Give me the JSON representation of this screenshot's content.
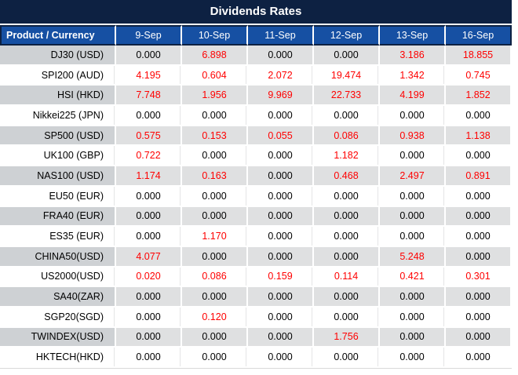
{
  "title": "Dividends Rates",
  "chart_data": {
    "type": "table",
    "title": "Dividends Rates",
    "product_header": "Product / Currency",
    "date_headers": [
      "9-Sep",
      "10-Sep",
      "11-Sep",
      "12-Sep",
      "13-Sep",
      "16-Sep"
    ],
    "rows": [
      {
        "product": "DJ30 (USD)",
        "values": [
          "0.000",
          "6.898",
          "0.000",
          "0.000",
          "3.186",
          "18.855"
        ],
        "red": [
          false,
          true,
          false,
          false,
          true,
          true
        ]
      },
      {
        "product": "SPI200 (AUD)",
        "values": [
          "4.195",
          "0.604",
          "2.072",
          "19.474",
          "1.342",
          "0.745"
        ],
        "red": [
          true,
          true,
          true,
          true,
          true,
          true
        ]
      },
      {
        "product": "HSI (HKD)",
        "values": [
          "7.748",
          "1.956",
          "9.969",
          "22.733",
          "4.199",
          "1.852"
        ],
        "red": [
          true,
          true,
          true,
          true,
          true,
          true
        ]
      },
      {
        "product": "Nikkei225 (JPN)",
        "values": [
          "0.000",
          "0.000",
          "0.000",
          "0.000",
          "0.000",
          "0.000"
        ],
        "red": [
          false,
          false,
          false,
          false,
          false,
          false
        ]
      },
      {
        "product": "SP500 (USD)",
        "values": [
          "0.575",
          "0.153",
          "0.055",
          "0.086",
          "0.938",
          "1.138"
        ],
        "red": [
          true,
          true,
          true,
          true,
          true,
          true
        ]
      },
      {
        "product": "UK100 (GBP)",
        "values": [
          "0.722",
          "0.000",
          "0.000",
          "1.182",
          "0.000",
          "0.000"
        ],
        "red": [
          true,
          false,
          false,
          true,
          false,
          false
        ]
      },
      {
        "product": "NAS100 (USD)",
        "values": [
          "1.174",
          "0.163",
          "0.000",
          "0.468",
          "2.497",
          "0.891"
        ],
        "red": [
          true,
          true,
          false,
          true,
          true,
          true
        ]
      },
      {
        "product": "EU50 (EUR)",
        "values": [
          "0.000",
          "0.000",
          "0.000",
          "0.000",
          "0.000",
          "0.000"
        ],
        "red": [
          false,
          false,
          false,
          false,
          false,
          false
        ]
      },
      {
        "product": "FRA40 (EUR)",
        "values": [
          "0.000",
          "0.000",
          "0.000",
          "0.000",
          "0.000",
          "0.000"
        ],
        "red": [
          false,
          false,
          false,
          false,
          false,
          false
        ]
      },
      {
        "product": "ES35 (EUR)",
        "values": [
          "0.000",
          "1.170",
          "0.000",
          "0.000",
          "0.000",
          "0.000"
        ],
        "red": [
          false,
          true,
          false,
          false,
          false,
          false
        ]
      },
      {
        "product": "CHINA50(USD)",
        "values": [
          "4.077",
          "0.000",
          "0.000",
          "0.000",
          "5.248",
          "0.000"
        ],
        "red": [
          true,
          false,
          false,
          false,
          true,
          false
        ]
      },
      {
        "product": "US2000(USD)",
        "values": [
          "0.020",
          "0.086",
          "0.159",
          "0.114",
          "0.421",
          "0.301"
        ],
        "red": [
          true,
          true,
          true,
          true,
          true,
          true
        ]
      },
      {
        "product": "SA40(ZAR)",
        "values": [
          "0.000",
          "0.000",
          "0.000",
          "0.000",
          "0.000",
          "0.000"
        ],
        "red": [
          false,
          false,
          false,
          false,
          false,
          false
        ]
      },
      {
        "product": "SGP20(SGD)",
        "values": [
          "0.000",
          "0.120",
          "0.000",
          "0.000",
          "0.000",
          "0.000"
        ],
        "red": [
          false,
          true,
          false,
          false,
          false,
          false
        ]
      },
      {
        "product": "TWINDEX(USD)",
        "values": [
          "0.000",
          "0.000",
          "0.000",
          "1.756",
          "0.000",
          "0.000"
        ],
        "red": [
          false,
          false,
          false,
          true,
          false,
          false
        ]
      },
      {
        "product": "HKTECH(HKD)",
        "values": [
          "0.000",
          "0.000",
          "0.000",
          "0.000",
          "0.000",
          "0.000"
        ],
        "red": [
          false,
          false,
          false,
          false,
          false,
          false
        ]
      }
    ]
  },
  "colors": {
    "title_bg": "#0d2142",
    "header_bg": "#1650a3",
    "header_border": "#0d2142",
    "stripe_product_bg": "#ced1d4",
    "stripe_value_bg": "#dfe0e1",
    "value_red": "#ff0000",
    "value_black": "#000000"
  }
}
